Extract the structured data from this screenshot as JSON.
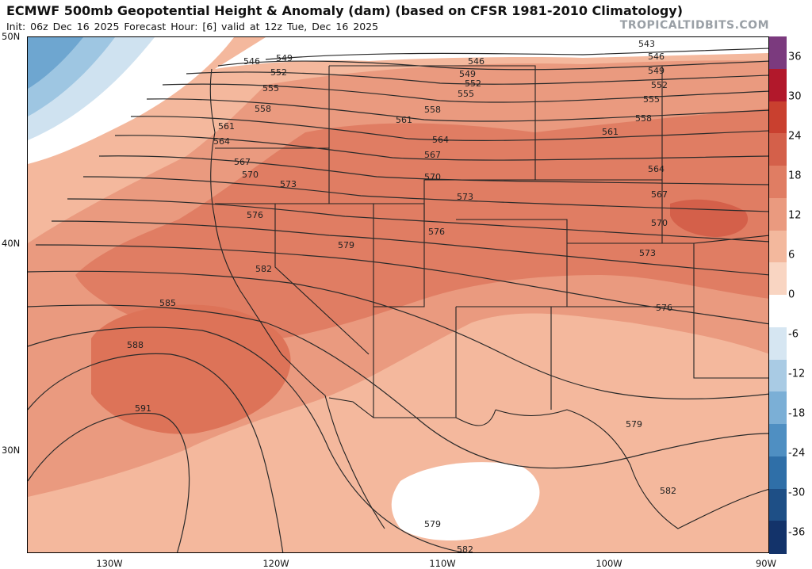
{
  "header": {
    "title": "ECMWF 500mb Geopotential Height & Anomaly (dam) (based on CFSR 1981-2010 Climatology)",
    "subtitle": "Init: 06z Dec 16 2025   Forecast Hour: [6]   valid at 12z Tue, Dec 16 2025",
    "watermark": "TROPICALTIDBITS.COM"
  },
  "axes": {
    "lat_labels": [
      "50N",
      "40N",
      "30N"
    ],
    "lon_labels": [
      "130W",
      "120W",
      "110W",
      "100W",
      "90W"
    ]
  },
  "colorbar": {
    "labels": [
      "36",
      "30",
      "24",
      "18",
      "12",
      "6",
      "0",
      "-6",
      "-12",
      "-18",
      "-24",
      "-30",
      "-36"
    ],
    "colors": [
      "#7b3a7e",
      "#b2182b",
      "#c9402f",
      "#d4604a",
      "#e07d63",
      "#ea9a7f",
      "#f3b89d",
      "#f9d5c2",
      "#ffffff",
      "#d6e6f2",
      "#a9cbe4",
      "#7bafd6",
      "#4f8fc2",
      "#2f6fa8",
      "#1e4f86",
      "#13336a"
    ]
  },
  "contours": {
    "labels": [
      "543",
      "546",
      "549",
      "552",
      "555",
      "558",
      "561",
      "564",
      "567",
      "570",
      "573",
      "576",
      "579",
      "582",
      "585",
      "588",
      "591"
    ]
  }
}
